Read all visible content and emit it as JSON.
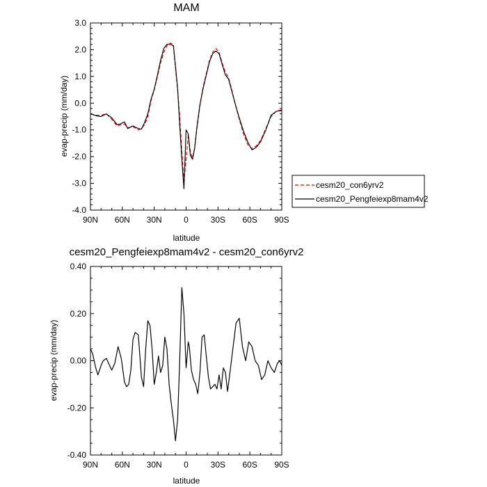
{
  "chart_data": [
    {
      "type": "line",
      "title": "MAM",
      "xlabel": "latitude",
      "ylabel": "evap-precip (mm/day)",
      "xlim": [
        90,
        -90
      ],
      "ylim": [
        -4.0,
        3.0
      ],
      "x_ticks": [
        90,
        60,
        30,
        0,
        -30,
        -60,
        -90
      ],
      "x_tick_labels": [
        "90N",
        "60N",
        "30N",
        "0",
        "30S",
        "60S",
        "90S"
      ],
      "y_ticks": [
        -4.0,
        -3.0,
        -2.0,
        -1.0,
        0.0,
        1.0,
        2.0,
        3.0
      ],
      "y_tick_labels": [
        "-4.0",
        "-3.0",
        "-2.0",
        "-1.0",
        "0.0",
        "1.0",
        "2.0",
        "3.0"
      ],
      "grid": false,
      "legend": "outside-right",
      "series": [
        {
          "name": "cesm20_con6yrv2",
          "color": "#ff0000",
          "dash": "dashed",
          "x": [
            90,
            84,
            80,
            75,
            70,
            65,
            62,
            58,
            55,
            50,
            45,
            42,
            39,
            36,
            33,
            30,
            27,
            24,
            21,
            18,
            15,
            12,
            10,
            8,
            6,
            4,
            2,
            0,
            -2,
            -4,
            -6,
            -8,
            -10,
            -13,
            -16,
            -19,
            -22,
            -25,
            -28,
            -31,
            -34,
            -37,
            -40,
            -43,
            -46,
            -50,
            -54,
            -58,
            -62,
            -66,
            -70,
            -75,
            -80,
            -85,
            -90
          ],
          "y": [
            -0.4,
            -0.45,
            -0.45,
            -0.4,
            -0.6,
            -0.85,
            -0.82,
            -0.78,
            -0.92,
            -0.88,
            -1.0,
            -0.95,
            -0.8,
            -0.5,
            0.1,
            0.5,
            1.0,
            1.5,
            1.9,
            2.15,
            2.25,
            2.2,
            1.3,
            0.5,
            -0.5,
            -1.8,
            -2.9,
            -2.1,
            -1.2,
            -1.8,
            -2.05,
            -1.7,
            -1.0,
            -0.1,
            0.6,
            1.1,
            1.6,
            1.9,
            2.05,
            1.9,
            1.5,
            1.15,
            0.95,
            0.5,
            0.0,
            -0.6,
            -1.15,
            -1.55,
            -1.7,
            -1.6,
            -1.4,
            -0.95,
            -0.5,
            -0.3,
            -0.25
          ]
        },
        {
          "name": "cesm20_Pengfeiexp8mam4v2",
          "color": "#000000",
          "dash": "solid",
          "x": [
            90,
            84,
            80,
            75,
            70,
            65,
            62,
            58,
            55,
            50,
            45,
            42,
            39,
            36,
            33,
            30,
            27,
            24,
            21,
            18,
            15,
            12,
            10,
            8,
            6,
            4,
            2,
            0,
            -2,
            -4,
            -6,
            -8,
            -10,
            -13,
            -16,
            -19,
            -22,
            -25,
            -28,
            -31,
            -34,
            -37,
            -40,
            -43,
            -46,
            -50,
            -54,
            -58,
            -62,
            -66,
            -70,
            -75,
            -80,
            -85,
            -90
          ],
          "y": [
            -0.4,
            -0.48,
            -0.5,
            -0.4,
            -0.55,
            -0.8,
            -0.78,
            -0.7,
            -0.95,
            -0.85,
            -0.95,
            -0.97,
            -0.72,
            -0.4,
            0.15,
            0.52,
            1.05,
            1.6,
            2.05,
            2.2,
            2.2,
            2.15,
            1.4,
            0.55,
            -0.8,
            -2.1,
            -3.2,
            -1.0,
            -1.15,
            -1.95,
            -2.1,
            -1.7,
            -0.95,
            -0.05,
            0.55,
            1.05,
            1.55,
            1.85,
            1.95,
            1.85,
            1.45,
            1.05,
            0.9,
            0.45,
            0.0,
            -0.55,
            -1.05,
            -1.45,
            -1.75,
            -1.65,
            -1.45,
            -1.0,
            -0.45,
            -0.3,
            -0.28
          ]
        }
      ]
    },
    {
      "type": "line",
      "title": "cesm20_Pengfeiexp8mam4v2 - cesm20_con6yrv2",
      "xlabel": "latitude",
      "ylabel": "evap-precip (mm/day)",
      "xlim": [
        90,
        -90
      ],
      "ylim": [
        -0.4,
        0.4
      ],
      "x_ticks": [
        90,
        60,
        30,
        0,
        -30,
        -60,
        -90
      ],
      "x_tick_labels": [
        "90N",
        "60N",
        "30N",
        "0",
        "30S",
        "60S",
        "90S"
      ],
      "y_ticks": [
        -0.4,
        -0.2,
        0.0,
        0.2,
        0.4
      ],
      "y_tick_labels": [
        "-0.40",
        "-0.20",
        "0.00",
        "0.20",
        "0.40"
      ],
      "grid": false,
      "series": [
        {
          "color": "#000000",
          "dash": "solid",
          "x": [
            90,
            88,
            85,
            83,
            80,
            78,
            75,
            72,
            70,
            67,
            64,
            61,
            58,
            56,
            54,
            52,
            50,
            48,
            45,
            42,
            40,
            38,
            36,
            34,
            32,
            30,
            28,
            26,
            24,
            22,
            20,
            18,
            16,
            14,
            12,
            10,
            8,
            6,
            4,
            2,
            0,
            -1,
            -2,
            -3,
            -5,
            -7,
            -9,
            -11,
            -13,
            -15,
            -17,
            -19,
            -21,
            -23,
            -25,
            -27,
            -29,
            -31,
            -33,
            -35,
            -37,
            -39,
            -41,
            -44,
            -47,
            -50,
            -53,
            -56,
            -59,
            -62,
            -65,
            -68,
            -71,
            -74,
            -77,
            -80,
            -83,
            -86,
            -88,
            -90
          ],
          "y": [
            0.05,
            0.03,
            -0.03,
            -0.06,
            -0.02,
            0.0,
            0.01,
            -0.02,
            -0.04,
            -0.01,
            0.06,
            0.01,
            -0.09,
            -0.11,
            -0.1,
            -0.04,
            0.09,
            0.12,
            0.11,
            -0.07,
            -0.11,
            0.05,
            0.17,
            0.15,
            0.05,
            -0.1,
            -0.05,
            0.02,
            -0.05,
            -0.02,
            0.1,
            0.05,
            -0.1,
            -0.18,
            -0.25,
            -0.34,
            -0.25,
            0.0,
            0.31,
            0.2,
            -0.03,
            0.02,
            0.08,
            0.06,
            -0.04,
            -0.08,
            -0.1,
            -0.14,
            -0.05,
            0.1,
            0.11,
            0.02,
            -0.07,
            -0.12,
            -0.11,
            -0.1,
            -0.12,
            -0.06,
            -0.12,
            -0.03,
            -0.05,
            -0.13,
            -0.06,
            0.05,
            0.16,
            0.18,
            0.06,
            0.0,
            0.08,
            0.06,
            0.0,
            -0.02,
            -0.08,
            -0.06,
            0.0,
            -0.03,
            -0.05,
            -0.01,
            0.0,
            -0.02
          ]
        }
      ]
    }
  ]
}
